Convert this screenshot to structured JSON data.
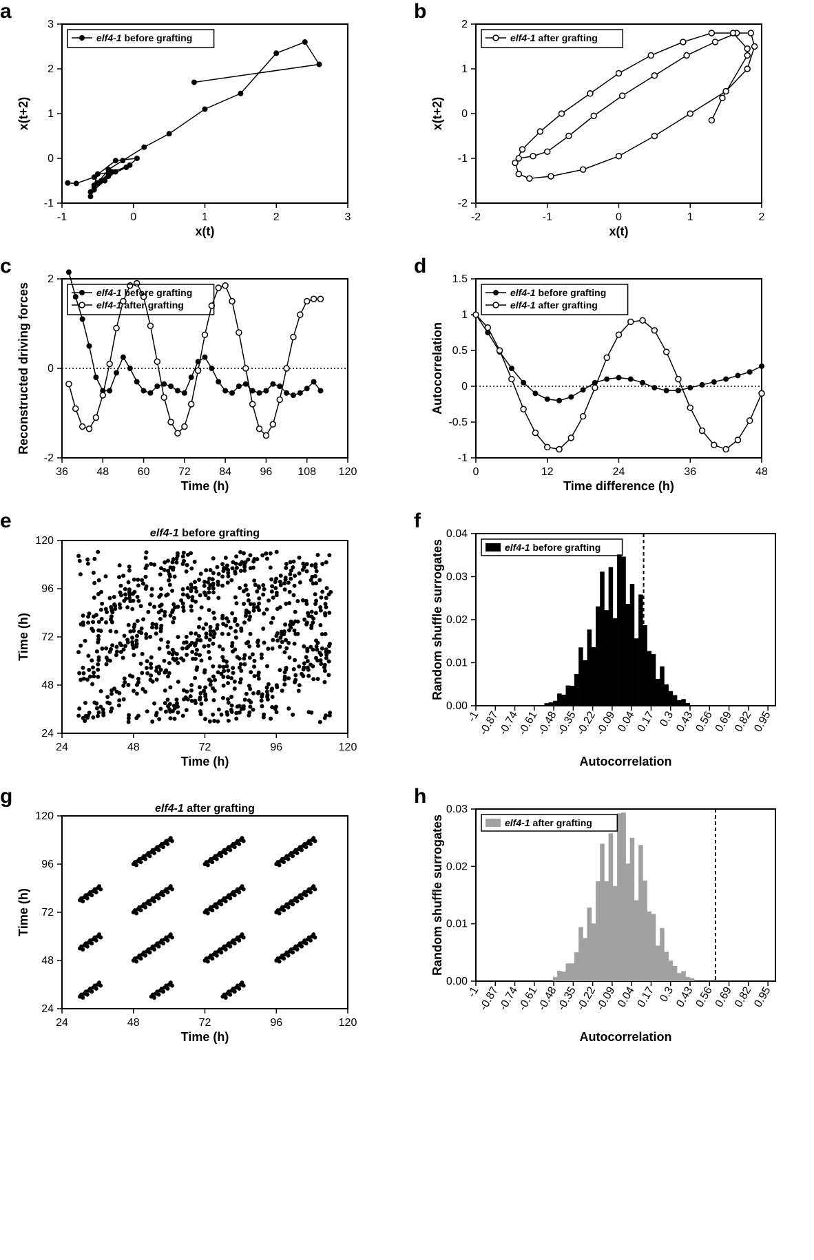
{
  "panel_a": {
    "letter": "a",
    "type": "line",
    "xlabel": "x(t)",
    "ylabel": "x(t+2)",
    "xlim": [
      -1,
      3
    ],
    "ylim": [
      -1,
      3
    ],
    "xticks": [
      -1,
      0,
      1,
      2,
      3
    ],
    "yticks": [
      -1,
      0,
      1,
      2,
      3
    ],
    "legend": {
      "label_prefix": "elf4-1",
      "label_rest": " before grafting",
      "marker": "filled"
    },
    "data": [
      [
        -0.92,
        -0.55
      ],
      [
        -0.8,
        -0.56
      ],
      [
        -0.55,
        -0.42
      ],
      [
        -0.25,
        -0.05
      ],
      [
        0.05,
        0.0
      ],
      [
        -0.05,
        -0.15
      ],
      [
        -0.35,
        -0.35
      ],
      [
        -0.5,
        -0.55
      ],
      [
        -0.6,
        -0.75
      ],
      [
        -0.55,
        -0.6
      ],
      [
        -0.5,
        -0.35
      ],
      [
        -0.25,
        -0.3
      ],
      [
        -0.4,
        -0.5
      ],
      [
        -0.55,
        -0.7
      ],
      [
        -0.6,
        -0.85
      ],
      [
        -0.55,
        -0.7
      ],
      [
        -0.35,
        -0.4
      ],
      [
        -0.1,
        -0.2
      ],
      [
        -0.3,
        -0.3
      ],
      [
        -0.45,
        -0.5
      ],
      [
        -0.55,
        -0.65
      ],
      [
        -0.5,
        -0.55
      ],
      [
        -0.35,
        -0.25
      ],
      [
        -0.15,
        -0.05
      ],
      [
        0.15,
        0.25
      ],
      [
        0.5,
        0.55
      ],
      [
        1.0,
        1.1
      ],
      [
        1.5,
        1.45
      ],
      [
        2.0,
        2.35
      ],
      [
        2.4,
        2.6
      ],
      [
        2.6,
        2.1
      ],
      [
        0.85,
        1.7
      ]
    ],
    "marker_size": 4,
    "background_color": "#ffffff",
    "line_color": "#000000"
  },
  "panel_b": {
    "letter": "b",
    "type": "line",
    "xlabel": "x(t)",
    "ylabel": "x(t+2)",
    "xlim": [
      -2,
      2
    ],
    "ylim": [
      -2,
      2
    ],
    "xticks": [
      -2,
      -1,
      0,
      1,
      2
    ],
    "yticks": [
      -2,
      -1,
      0,
      1,
      2
    ],
    "legend": {
      "label_prefix": "elf4-1",
      "label_rest": " after grafting",
      "marker": "open"
    },
    "data": [
      [
        -1.4,
        -1.0
      ],
      [
        -1.2,
        -0.95
      ],
      [
        -1.0,
        -0.85
      ],
      [
        -0.7,
        -0.5
      ],
      [
        -0.35,
        -0.05
      ],
      [
        0.05,
        0.4
      ],
      [
        0.5,
        0.85
      ],
      [
        0.95,
        1.3
      ],
      [
        1.35,
        1.6
      ],
      [
        1.65,
        1.8
      ],
      [
        1.85,
        1.8
      ],
      [
        1.9,
        1.5
      ],
      [
        1.8,
        1.0
      ],
      [
        1.5,
        0.5
      ],
      [
        1.0,
        0.0
      ],
      [
        0.5,
        -0.5
      ],
      [
        0.0,
        -0.95
      ],
      [
        -0.5,
        -1.25
      ],
      [
        -0.95,
        -1.4
      ],
      [
        -1.25,
        -1.45
      ],
      [
        -1.4,
        -1.35
      ],
      [
        -1.45,
        -1.1
      ],
      [
        -1.35,
        -0.8
      ],
      [
        -1.1,
        -0.4
      ],
      [
        -0.8,
        0.0
      ],
      [
        -0.4,
        0.45
      ],
      [
        0.0,
        0.9
      ],
      [
        0.45,
        1.3
      ],
      [
        0.9,
        1.6
      ],
      [
        1.3,
        1.8
      ],
      [
        1.6,
        1.8
      ],
      [
        1.8,
        1.45
      ],
      [
        1.8,
        1.3
      ],
      [
        1.45,
        0.35
      ],
      [
        1.3,
        -0.15
      ]
    ],
    "marker_size": 4,
    "background_color": "#ffffff",
    "line_color": "#000000"
  },
  "panel_c": {
    "letter": "c",
    "type": "line",
    "xlabel": "Time (h)",
    "ylabel": "Reconstructed driving forces",
    "xlim": [
      36,
      120
    ],
    "ylim": [
      -2,
      2
    ],
    "xticks": [
      36,
      48,
      60,
      72,
      84,
      96,
      108,
      120
    ],
    "yticks": [
      -2,
      0,
      2
    ],
    "zero_line": true,
    "series": [
      {
        "label_prefix": "elf4-1",
        "label_rest": " before grafting",
        "marker": "filled",
        "data": [
          [
            38,
            2.15
          ],
          [
            40,
            1.6
          ],
          [
            42,
            1.1
          ],
          [
            44,
            0.5
          ],
          [
            46,
            -0.2
          ],
          [
            48,
            -0.5
          ],
          [
            50,
            -0.5
          ],
          [
            52,
            -0.1
          ],
          [
            54,
            0.25
          ],
          [
            56,
            0.0
          ],
          [
            58,
            -0.3
          ],
          [
            60,
            -0.5
          ],
          [
            62,
            -0.55
          ],
          [
            64,
            -0.4
          ],
          [
            66,
            -0.35
          ],
          [
            68,
            -0.4
          ],
          [
            70,
            -0.5
          ],
          [
            72,
            -0.55
          ],
          [
            74,
            -0.2
          ],
          [
            76,
            0.15
          ],
          [
            78,
            0.25
          ],
          [
            80,
            0.0
          ],
          [
            82,
            -0.3
          ],
          [
            84,
            -0.5
          ],
          [
            86,
            -0.55
          ],
          [
            88,
            -0.4
          ],
          [
            90,
            -0.35
          ],
          [
            92,
            -0.5
          ],
          [
            94,
            -0.55
          ],
          [
            96,
            -0.5
          ],
          [
            98,
            -0.35
          ],
          [
            100,
            -0.4
          ],
          [
            102,
            -0.55
          ],
          [
            104,
            -0.6
          ],
          [
            106,
            -0.55
          ],
          [
            108,
            -0.45
          ],
          [
            110,
            -0.3
          ],
          [
            112,
            -0.5
          ]
        ]
      },
      {
        "label_prefix": "elf4-1",
        "label_rest": " after grafting",
        "marker": "open",
        "data": [
          [
            38,
            -0.35
          ],
          [
            40,
            -0.9
          ],
          [
            42,
            -1.3
          ],
          [
            44,
            -1.35
          ],
          [
            46,
            -1.1
          ],
          [
            48,
            -0.6
          ],
          [
            50,
            0.1
          ],
          [
            52,
            0.9
          ],
          [
            54,
            1.5
          ],
          [
            56,
            1.85
          ],
          [
            58,
            1.9
          ],
          [
            60,
            1.6
          ],
          [
            62,
            0.95
          ],
          [
            64,
            0.15
          ],
          [
            66,
            -0.65
          ],
          [
            68,
            -1.2
          ],
          [
            70,
            -1.45
          ],
          [
            72,
            -1.3
          ],
          [
            74,
            -0.8
          ],
          [
            76,
            -0.05
          ],
          [
            78,
            0.75
          ],
          [
            80,
            1.4
          ],
          [
            82,
            1.8
          ],
          [
            84,
            1.85
          ],
          [
            86,
            1.5
          ],
          [
            88,
            0.8
          ],
          [
            90,
            0.0
          ],
          [
            92,
            -0.8
          ],
          [
            94,
            -1.35
          ],
          [
            96,
            -1.5
          ],
          [
            98,
            -1.25
          ],
          [
            100,
            -0.7
          ],
          [
            102,
            0.0
          ],
          [
            104,
            0.7
          ],
          [
            106,
            1.2
          ],
          [
            108,
            1.5
          ],
          [
            110,
            1.55
          ],
          [
            112,
            1.55
          ]
        ]
      }
    ],
    "background_color": "#ffffff",
    "line_color": "#000000",
    "marker_size": 4
  },
  "panel_d": {
    "letter": "d",
    "type": "line",
    "xlabel": "Time difference (h)",
    "ylabel": "Autocorrelation",
    "xlim": [
      0,
      48
    ],
    "ylim": [
      -1.0,
      1.5
    ],
    "xticks": [
      0,
      12,
      24,
      36,
      48
    ],
    "yticks": [
      -1.0,
      -0.5,
      0.0,
      0.5,
      1.0,
      1.5
    ],
    "zero_line": true,
    "series": [
      {
        "label_prefix": "elf4-1",
        "label_rest": " before grafting",
        "marker": "filled",
        "data": [
          [
            0,
            1.0
          ],
          [
            2,
            0.75
          ],
          [
            4,
            0.48
          ],
          [
            6,
            0.25
          ],
          [
            8,
            0.05
          ],
          [
            10,
            -0.1
          ],
          [
            12,
            -0.18
          ],
          [
            14,
            -0.2
          ],
          [
            16,
            -0.15
          ],
          [
            18,
            -0.05
          ],
          [
            20,
            0.05
          ],
          [
            22,
            0.1
          ],
          [
            24,
            0.12
          ],
          [
            26,
            0.1
          ],
          [
            28,
            0.05
          ],
          [
            30,
            -0.02
          ],
          [
            32,
            -0.06
          ],
          [
            34,
            -0.06
          ],
          [
            36,
            -0.02
          ],
          [
            38,
            0.02
          ],
          [
            40,
            0.06
          ],
          [
            42,
            0.1
          ],
          [
            44,
            0.15
          ],
          [
            46,
            0.2
          ],
          [
            48,
            0.28
          ]
        ]
      },
      {
        "label_prefix": "elf4-1",
        "label_rest": " after grafting",
        "marker": "open",
        "data": [
          [
            0,
            1.0
          ],
          [
            2,
            0.82
          ],
          [
            4,
            0.5
          ],
          [
            6,
            0.1
          ],
          [
            8,
            -0.32
          ],
          [
            10,
            -0.65
          ],
          [
            12,
            -0.85
          ],
          [
            14,
            -0.88
          ],
          [
            16,
            -0.72
          ],
          [
            18,
            -0.42
          ],
          [
            20,
            -0.02
          ],
          [
            22,
            0.4
          ],
          [
            24,
            0.72
          ],
          [
            26,
            0.9
          ],
          [
            28,
            0.92
          ],
          [
            30,
            0.78
          ],
          [
            32,
            0.48
          ],
          [
            34,
            0.1
          ],
          [
            36,
            -0.3
          ],
          [
            38,
            -0.62
          ],
          [
            40,
            -0.82
          ],
          [
            42,
            -0.88
          ],
          [
            44,
            -0.75
          ],
          [
            46,
            -0.48
          ],
          [
            48,
            -0.1
          ]
        ]
      }
    ],
    "background_color": "#ffffff",
    "line_color": "#000000",
    "marker_size": 4
  },
  "panel_e": {
    "letter": "e",
    "type": "scatter",
    "title_prefix": "elf4-1",
    "title_rest": " before grafting",
    "xlabel": "Time (h)",
    "ylabel": "Time (h)",
    "xlim": [
      24,
      120
    ],
    "ylim": [
      24,
      120
    ],
    "xticks": [
      24,
      48,
      72,
      96,
      120
    ],
    "yticks": [
      24,
      48,
      72,
      96,
      120
    ],
    "marker_size": 3,
    "seed": 11,
    "n_points": 650,
    "pattern": "noisy_diagonal",
    "background_color": "#ffffff",
    "marker_color": "#000000"
  },
  "panel_f": {
    "letter": "f",
    "type": "histogram",
    "xlabel": "Autocorrelation",
    "ylabel": "Random shuffle surrogates",
    "xlim": [
      -1,
      1
    ],
    "ylim": [
      0,
      0.04
    ],
    "xticks": [
      -1,
      -0.87,
      -0.74,
      -0.61,
      -0.48,
      -0.35,
      -0.22,
      -0.09,
      0.04,
      0.17,
      0.3,
      0.43,
      0.56,
      0.69,
      0.82,
      0.95
    ],
    "yticks": [
      0.0,
      0.01,
      0.02,
      0.03,
      0.04
    ],
    "legend": {
      "label_prefix": "elf4-1",
      "label_rest": " before grafting",
      "marker": "filled"
    },
    "bar_color": "#000000",
    "vline_x": 0.12,
    "vline_style": "dashed",
    "dist_mean": -0.05,
    "dist_sd": 0.17,
    "dist_peak": 0.03,
    "n_bins": 70,
    "background_color": "#ffffff"
  },
  "panel_g": {
    "letter": "g",
    "type": "scatter",
    "title_prefix": "elf4-1",
    "title_rest": " after grafting",
    "xlabel": "Time (h)",
    "ylabel": "Time (h)",
    "xlim": [
      24,
      120
    ],
    "ylim": [
      24,
      120
    ],
    "xticks": [
      24,
      48,
      72,
      96,
      120
    ],
    "yticks": [
      24,
      48,
      72,
      96,
      120
    ],
    "marker_size": 3,
    "pattern": "clean_diagonals",
    "background_color": "#ffffff",
    "marker_color": "#000000"
  },
  "panel_h": {
    "letter": "h",
    "type": "histogram",
    "xlabel": "Autocorrelation",
    "ylabel": "Random shuffle surrogates",
    "xlim": [
      -1,
      1
    ],
    "ylim": [
      0,
      0.03
    ],
    "xticks": [
      -1,
      -0.87,
      -0.74,
      -0.61,
      -0.48,
      -0.35,
      -0.22,
      -0.09,
      0.04,
      0.17,
      0.3,
      0.43,
      0.56,
      0.69,
      0.82,
      0.95
    ],
    "yticks": [
      0.0,
      0.01,
      0.02,
      0.03
    ],
    "legend": {
      "label_prefix": "elf4-1",
      "label_rest": " after grafting",
      "marker": "filled_grey"
    },
    "bar_color": "#a0a0a0",
    "vline_x": 0.6,
    "vline_style": "dashed_grey",
    "dist_mean": -0.03,
    "dist_sd": 0.17,
    "dist_peak": 0.025,
    "n_bins": 70,
    "background_color": "#ffffff"
  }
}
